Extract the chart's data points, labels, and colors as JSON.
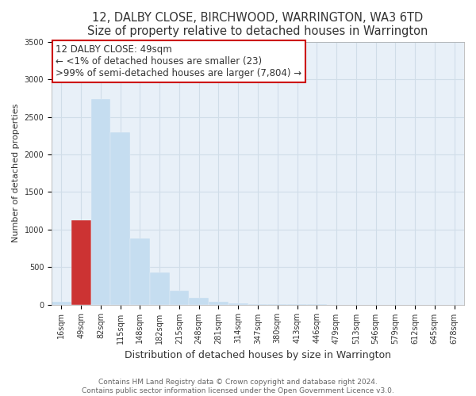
{
  "title": "12, DALBY CLOSE, BIRCHWOOD, WARRINGTON, WA3 6TD",
  "subtitle": "Size of property relative to detached houses in Warrington",
  "xlabel": "Distribution of detached houses by size in Warrington",
  "ylabel": "Number of detached properties",
  "bar_labels": [
    "16sqm",
    "49sqm",
    "82sqm",
    "115sqm",
    "148sqm",
    "182sqm",
    "215sqm",
    "248sqm",
    "281sqm",
    "314sqm",
    "347sqm",
    "380sqm",
    "413sqm",
    "446sqm",
    "479sqm",
    "513sqm",
    "546sqm",
    "579sqm",
    "612sqm",
    "645sqm",
    "678sqm"
  ],
  "bar_values": [
    40,
    1120,
    2740,
    2290,
    880,
    430,
    185,
    95,
    35,
    18,
    10,
    5,
    2,
    1,
    0,
    0,
    0,
    0,
    0,
    0,
    0
  ],
  "bar_color": "#c5ddf0",
  "highlight_bar_index": 1,
  "highlight_bar_color": "#cc3333",
  "annotation_title": "12 DALBY CLOSE: 49sqm",
  "annotation_line1": "← <1% of detached houses are smaller (23)",
  "annotation_line2": ">99% of semi-detached houses are larger (7,804) →",
  "annotation_box_color": "#ffffff",
  "annotation_box_edgecolor": "#cc0000",
  "ylim": [
    0,
    3500
  ],
  "yticks": [
    0,
    500,
    1000,
    1500,
    2000,
    2500,
    3000,
    3500
  ],
  "footer_line1": "Contains HM Land Registry data © Crown copyright and database right 2024.",
  "footer_line2": "Contains public sector information licensed under the Open Government Licence v3.0.",
  "title_fontsize": 10.5,
  "subtitle_fontsize": 9,
  "xlabel_fontsize": 9,
  "ylabel_fontsize": 8,
  "tick_fontsize": 7,
  "annotation_fontsize": 8.5,
  "footer_fontsize": 6.5,
  "grid_color": "#d0dde8",
  "bg_color": "#e8f0f8"
}
